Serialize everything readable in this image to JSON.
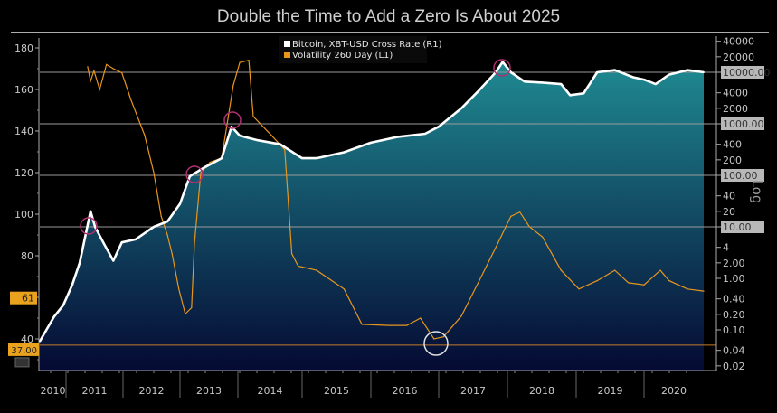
{
  "chart_data": {
    "type": "line",
    "title": "Double the Time to Add a Zero Is About 2025",
    "xlabel": "",
    "x_tick_labels": [
      "2010",
      "2011",
      "2012",
      "2013",
      "2014",
      "2015",
      "2016",
      "2017",
      "2018",
      "2019",
      "2020"
    ],
    "left_axis": {
      "ylim": [
        25,
        185
      ],
      "ticks": [
        40,
        60,
        80,
        100,
        120,
        140,
        160,
        180
      ],
      "tick_labels": [
        "40",
        "",
        "80",
        "100",
        "120",
        "140",
        "160",
        "180"
      ]
    },
    "right_axis": {
      "scale": "log",
      "label": "Log",
      "ylim": [
        0.015,
        50000
      ],
      "ticks": [
        40000,
        20000,
        10000,
        4000,
        2000,
        1000,
        400,
        200,
        100,
        40,
        20,
        10,
        4,
        2,
        1,
        0.4,
        0.2,
        0.1,
        0.04,
        0.02
      ],
      "tick_labels": [
        "40000",
        "20000",
        "10000.00",
        "4000",
        "2000",
        "1000.00",
        "400",
        "200",
        "100.00",
        "40",
        "20",
        "10.00",
        "4",
        "2.00",
        "1.00",
        "0.40",
        "0.20",
        "0.10",
        "0.04",
        "0.02"
      ],
      "boxed_gridlines": [
        10000,
        1000,
        100,
        10
      ]
    },
    "legend_placement": "top-center",
    "series": [
      {
        "name": "Bitcoin, XBT-USD Cross Rate  (R1)",
        "axis": "right",
        "color": "#ffffff",
        "x": [
          2010.54,
          2010.79,
          2010.95,
          2011.11,
          2011.24,
          2011.35,
          2011.43,
          2011.51,
          2011.67,
          2011.83,
          2011.98,
          2012.22,
          2012.54,
          2012.78,
          2013.0,
          2013.17,
          2013.41,
          2013.72,
          2013.89,
          2014.03,
          2014.31,
          2014.66,
          2015.0,
          2015.21,
          2015.61,
          2016.0,
          2016.4,
          2016.8,
          2017.0,
          2017.33,
          2017.59,
          2017.83,
          2017.93,
          2018.05,
          2018.25,
          2018.51,
          2018.78,
          2018.91,
          2019.11,
          2019.31,
          2019.57,
          2019.84,
          2020.0,
          2020.17,
          2020.37,
          2020.64,
          2020.88
        ],
        "values": [
          0.06,
          0.18,
          0.3,
          0.75,
          2,
          7.5,
          20,
          10,
          4.6,
          2.2,
          5,
          5.7,
          10,
          12.7,
          28,
          96,
          140,
          215,
          880,
          590,
          480,
          400,
          215,
          215,
          280,
          430,
          560,
          640,
          880,
          2000,
          4500,
          10000,
          16000,
          10000,
          6600,
          6300,
          5900,
          3600,
          3900,
          10000,
          11000,
          8000,
          7200,
          5900,
          9000,
          11000,
          10000
        ]
      },
      {
        "name": "Volatility 260 Day (L1)",
        "axis": "left",
        "color": "#e8961e",
        "x": [
          2011.38,
          2011.43,
          2011.49,
          2011.59,
          2011.71,
          2011.83,
          2011.98,
          2012.14,
          2012.38,
          2012.54,
          2012.67,
          2012.78,
          2012.86,
          2012.98,
          2013.09,
          2013.2,
          2013.25,
          2013.36,
          2013.52,
          2013.72,
          2013.92,
          2014.03,
          2014.17,
          2014.24,
          2014.52,
          2014.73,
          2014.8,
          2014.84,
          2014.94,
          2015.21,
          2015.61,
          2015.87,
          2016.27,
          2016.53,
          2016.73,
          2016.93,
          2017.07,
          2017.33,
          2017.59,
          2017.86,
          2018.05,
          2018.18,
          2018.32,
          2018.51,
          2018.78,
          2019.04,
          2019.31,
          2019.57,
          2019.77,
          2020.0,
          2020.24,
          2020.37,
          2020.64,
          2020.88
        ],
        "values": [
          171,
          164,
          169,
          160,
          172,
          170,
          168,
          155,
          138,
          120,
          99,
          90,
          81,
          64,
          52,
          55,
          86,
          120,
          125,
          127,
          162,
          173,
          174,
          147,
          138,
          131,
          99,
          81,
          75,
          73,
          64,
          47,
          46.5,
          46.5,
          50,
          40,
          41,
          51,
          68,
          86,
          99,
          101,
          94,
          89,
          73,
          64,
          68,
          73,
          67,
          66,
          73,
          68,
          64,
          63
        ]
      }
    ],
    "value_labels": {
      "volatility_last": "61",
      "reference_line": "37.00",
      "reference_value": 37
    },
    "grid": false,
    "colors": {
      "fill_top": "#1f8a92",
      "fill_bottom": "#050a33",
      "circle": "#b03070",
      "low_circle": "#e0e0e0"
    }
  }
}
